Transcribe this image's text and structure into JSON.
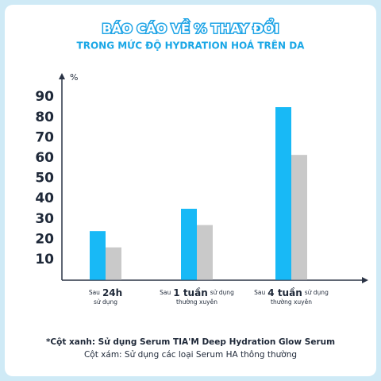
{
  "chart_data": {
    "type": "bar",
    "title": "BÁO CÁO VỀ % THAY ĐỔI",
    "subtitle": "TRONG MỨC ĐỘ HYDRATION HOÁ TRÊN DA",
    "y_label": "%",
    "categories": [
      {
        "parts": [
          "Sau",
          "24h"
        ],
        "second": "sử dụng"
      },
      {
        "parts": [
          "Sau",
          "1 tuần",
          "sử dụng"
        ],
        "second": "thường xuyên"
      },
      {
        "parts": [
          "Sau",
          "4 tuần",
          "sử dụng"
        ],
        "second": "thường xuyên"
      }
    ],
    "series": [
      {
        "name": "*Cột xanh: Sử dụng Serum TIA'M Deep Hydration Glow Serum",
        "color": "#18b9f6",
        "values": [
          24,
          35,
          85
        ]
      },
      {
        "name": "Cột xám: Sử dụng các loại Serum HA thông thường",
        "color": "#c9c9c9",
        "values": [
          16,
          27,
          61.5
        ]
      }
    ],
    "ylim": [
      0,
      100
    ],
    "yticks": [
      10,
      20,
      30,
      40,
      50,
      60,
      70,
      80,
      90
    ],
    "grid": false
  }
}
